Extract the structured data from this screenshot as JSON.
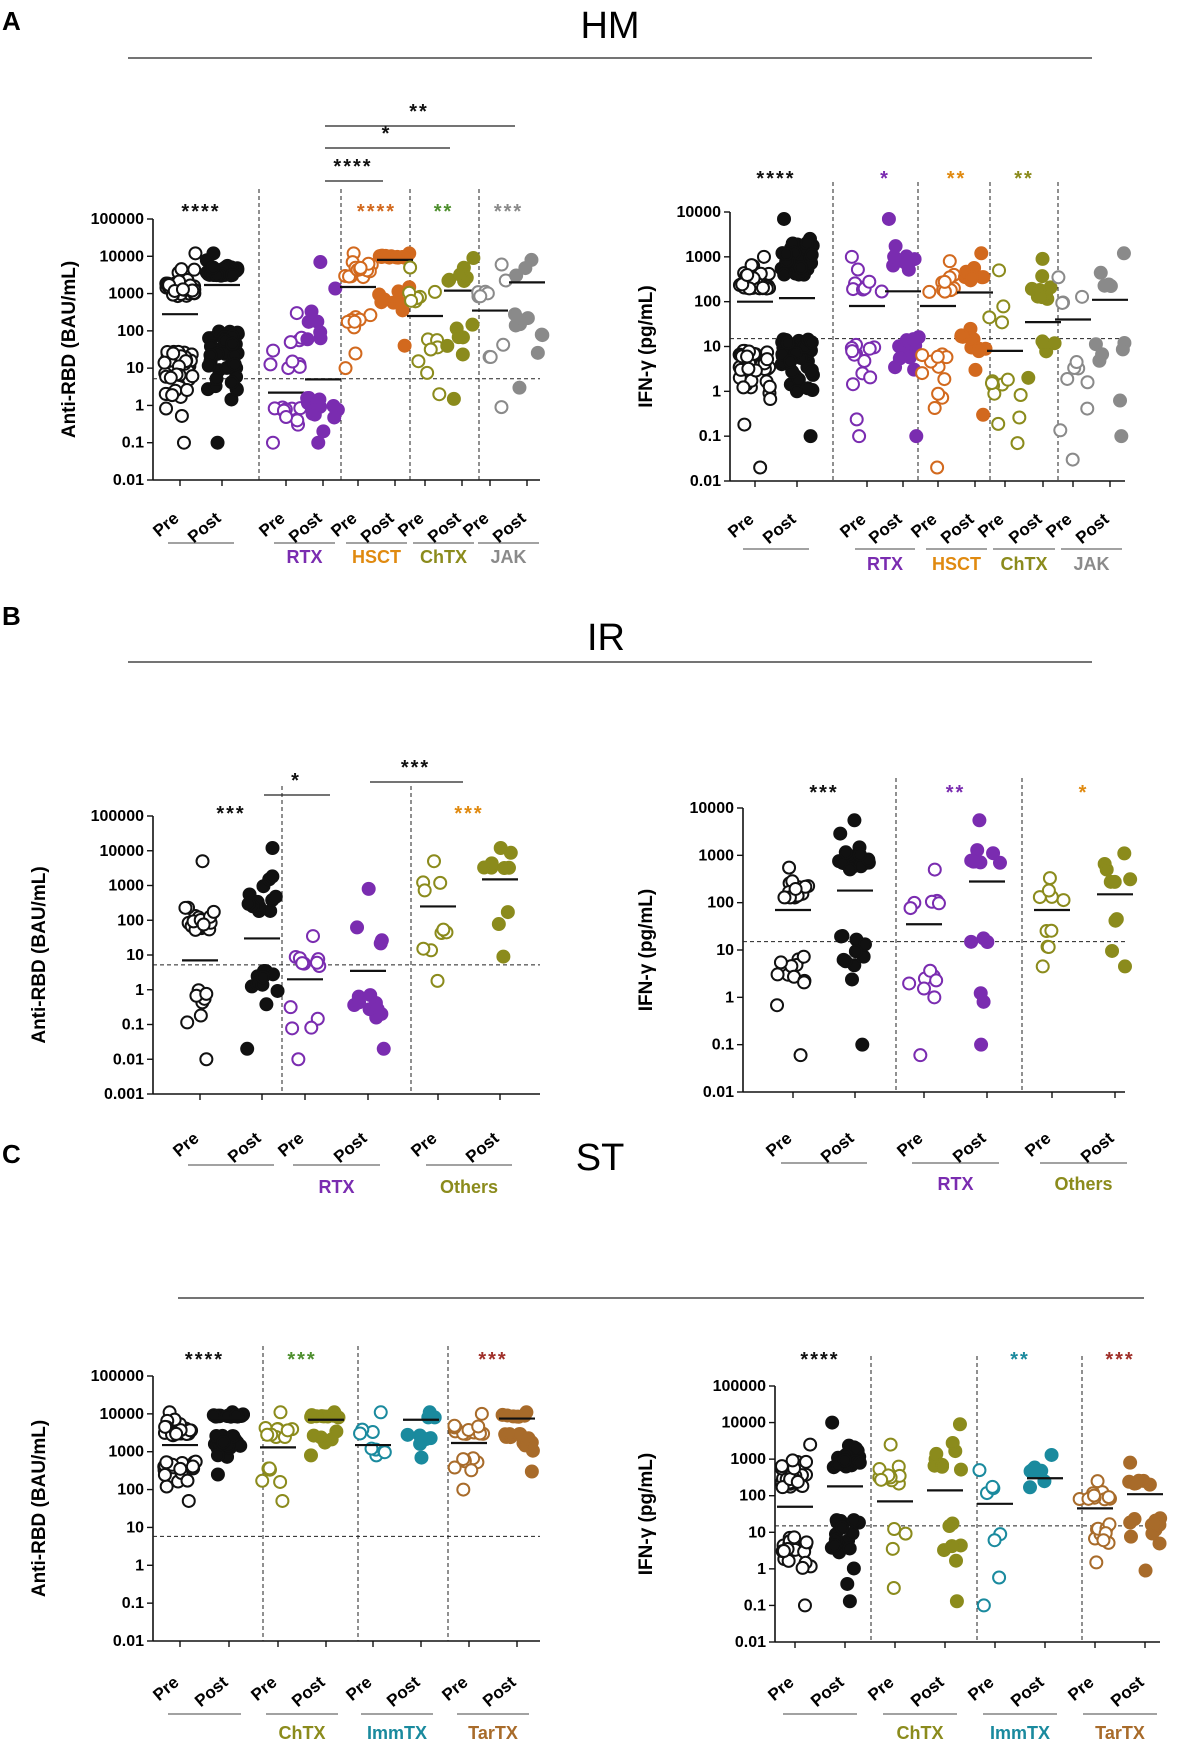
{
  "panels": [
    {
      "label": "A",
      "title": "HM"
    },
    {
      "label": "B",
      "title": "IR"
    },
    {
      "label": "C",
      "title": "ST"
    }
  ],
  "colors": {
    "black": "#111111",
    "rtx": "#7a2cb0",
    "hsct": "#d2691e",
    "hsct_label": "#e08a10",
    "chtx": "#8b8b1c",
    "chtx_sig": "#4e8f2e",
    "jak": "#8a8a8a",
    "others": "#8b8b1c",
    "immtx": "#1a8a9e",
    "tartx": "#a86b2a",
    "tartx_sig": "#a0302a"
  },
  "chart_data": [
    {
      "id": "A-left",
      "type": "scatter",
      "scale": "log",
      "ylabel": "Anti-RBD (BAU/mL)",
      "ytick_values": [
        0.01,
        0.1,
        1,
        10,
        100,
        1000,
        10000,
        100000
      ],
      "ytick_labels": [
        "0.01",
        "0.1",
        "1",
        "10",
        "100",
        "1000",
        "10000",
        "100000"
      ],
      "threshold": 5.2,
      "groups": [
        {
          "label": "",
          "categories": [
            {
              "name": "Pre",
              "color": "black",
              "filled": false,
              "n": 90,
              "min": 0.1,
              "max": 12000,
              "median": 280
            },
            {
              "name": "Post",
              "color": "black",
              "filled": true,
              "n": 90,
              "min": 0.1,
              "max": 12000,
              "median": 1700
            }
          ],
          "sig": "****",
          "sig_color": "black"
        },
        {
          "label": "RTX",
          "label_color": "rtx",
          "categories": [
            {
              "name": "Pre",
              "color": "rtx",
              "filled": false,
              "n": 22,
              "min": 0.1,
              "max": 300,
              "median": 2.2
            },
            {
              "name": "Post",
              "color": "rtx",
              "filled": true,
              "n": 22,
              "min": 0.1,
              "max": 7000,
              "median": 5
            }
          ]
        },
        {
          "label": "HSCT",
          "label_color": "hsct_label",
          "categories": [
            {
              "name": "Pre",
              "color": "hsct",
              "filled": false,
              "n": 24,
              "min": 10,
              "max": 12000,
              "median": 1500
            },
            {
              "name": "Post",
              "color": "hsct",
              "filled": true,
              "n": 24,
              "min": 40,
              "max": 12000,
              "median": 8000
            }
          ],
          "sig": "****",
          "sig_color": "hsct"
        },
        {
          "label": "ChTX",
          "label_color": "chtx",
          "categories": [
            {
              "name": "Pre",
              "color": "chtx",
              "filled": false,
              "n": 14,
              "min": 2,
              "max": 5000,
              "median": 250
            },
            {
              "name": "Post",
              "color": "chtx",
              "filled": true,
              "n": 14,
              "min": 1.5,
              "max": 9000,
              "median": 1200
            }
          ],
          "sig": "**",
          "sig_color": "chtx_sig"
        },
        {
          "label": "JAK",
          "label_color": "jak",
          "categories": [
            {
              "name": "Pre",
              "color": "jak",
              "filled": false,
              "n": 12,
              "min": 0.9,
              "max": 6000,
              "median": 350
            },
            {
              "name": "Post",
              "color": "jak",
              "filled": true,
              "n": 12,
              "min": 3,
              "max": 8000,
              "median": 2000
            }
          ],
          "sig": "***",
          "sig_color": "jak"
        }
      ],
      "brackets": [
        {
          "from": 1,
          "to": 2,
          "label": "****",
          "level": 0
        },
        {
          "from": 1,
          "to": 3,
          "label": "*",
          "level": 1
        },
        {
          "from": 1,
          "to": 4,
          "label": "**",
          "level": 2
        }
      ]
    },
    {
      "id": "A-right",
      "type": "scatter",
      "scale": "log",
      "ylabel": "IFN-γ (pg/mL)",
      "ytick_values": [
        0.01,
        0.1,
        1,
        10,
        100,
        1000,
        10000
      ],
      "ytick_labels": [
        "0.01",
        "0.1",
        "1",
        "10",
        "100",
        "1000",
        "10000"
      ],
      "threshold": 15,
      "groups": [
        {
          "label": "",
          "categories": [
            {
              "name": "Pre",
              "color": "black",
              "filled": false,
              "n": 80,
              "min": 0.02,
              "max": 1000,
              "median": 100
            },
            {
              "name": "Post",
              "color": "black",
              "filled": true,
              "n": 80,
              "min": 0.1,
              "max": 7000,
              "median": 120
            }
          ],
          "sig": "****",
          "sig_color": "black"
        },
        {
          "label": "RTX",
          "label_color": "rtx",
          "categories": [
            {
              "name": "Pre",
              "color": "rtx",
              "filled": false,
              "n": 22,
              "min": 0.1,
              "max": 1000,
              "median": 80
            },
            {
              "name": "Post",
              "color": "rtx",
              "filled": true,
              "n": 22,
              "min": 0.1,
              "max": 7000,
              "median": 170
            }
          ],
          "sig": "*",
          "sig_color": "rtx"
        },
        {
          "label": "HSCT",
          "label_color": "hsct_label",
          "categories": [
            {
              "name": "Pre",
              "color": "hsct",
              "filled": false,
              "n": 22,
              "min": 0.02,
              "max": 800,
              "median": 80
            },
            {
              "name": "Post",
              "color": "hsct",
              "filled": true,
              "n": 22,
              "min": 0.3,
              "max": 1200,
              "median": 160
            }
          ],
          "sig": "**",
          "sig_color": "hsct_label"
        },
        {
          "label": "ChTX",
          "label_color": "chtx",
          "categories": [
            {
              "name": "Pre",
              "color": "chtx",
              "filled": false,
              "n": 14,
              "min": 0.07,
              "max": 500,
              "median": 8
            },
            {
              "name": "Post",
              "color": "chtx",
              "filled": true,
              "n": 14,
              "min": 2,
              "max": 900,
              "median": 35
            }
          ],
          "sig": "**",
          "sig_color": "chtx"
        },
        {
          "label": "JAK",
          "label_color": "jak",
          "categories": [
            {
              "name": "Pre",
              "color": "jak",
              "filled": false,
              "n": 12,
              "min": 0.03,
              "max": 350,
              "median": 40
            },
            {
              "name": "Post",
              "color": "jak",
              "filled": true,
              "n": 12,
              "min": 0.1,
              "max": 1200,
              "median": 110
            }
          ]
        }
      ]
    },
    {
      "id": "B-left",
      "type": "scatter",
      "scale": "log",
      "ylabel": "Anti-RBD (BAU/mL)",
      "ytick_values": [
        0.001,
        0.01,
        0.1,
        1,
        10,
        100,
        1000,
        10000,
        100000
      ],
      "ytick_labels": [
        "0.001",
        "0.01",
        "0.1",
        "1",
        "10",
        "100",
        "1000",
        "10000",
        "100000"
      ],
      "threshold": 5.2,
      "groups": [
        {
          "label": "",
          "categories": [
            {
              "name": "Pre",
              "color": "black",
              "filled": false,
              "n": 26,
              "min": 0.01,
              "max": 5000,
              "median": 7
            },
            {
              "name": "Post",
              "color": "black",
              "filled": true,
              "n": 26,
              "min": 0.02,
              "max": 12000,
              "median": 30
            }
          ],
          "sig": "***",
          "sig_color": "black"
        },
        {
          "label": "RTX",
          "label_color": "rtx",
          "categories": [
            {
              "name": "Pre",
              "color": "rtx",
              "filled": false,
              "n": 14,
              "min": 0.01,
              "max": 35,
              "median": 2
            },
            {
              "name": "Post",
              "color": "rtx",
              "filled": true,
              "n": 14,
              "min": 0.02,
              "max": 800,
              "median": 3.5
            }
          ]
        },
        {
          "label": "Others",
          "label_color": "others",
          "categories": [
            {
              "name": "Pre",
              "color": "others",
              "filled": false,
              "n": 10,
              "min": 1.8,
              "max": 5000,
              "median": 250
            },
            {
              "name": "Post",
              "color": "others",
              "filled": true,
              "n": 10,
              "min": 9,
              "max": 12000,
              "median": 1500
            }
          ],
          "sig": "***",
          "sig_color": "hsct_label"
        }
      ],
      "brackets": [
        {
          "from": 0,
          "to": 1,
          "label": "*",
          "level": 0
        },
        {
          "from": 1,
          "to": 2,
          "label": "***",
          "level": 1
        }
      ]
    },
    {
      "id": "B-right",
      "type": "scatter",
      "scale": "log",
      "ylabel": "IFN-γ (pg/mL)",
      "ytick_values": [
        0.01,
        0.1,
        1,
        10,
        100,
        1000,
        10000
      ],
      "ytick_labels": [
        "0.01",
        "0.1",
        "1",
        "10",
        "100",
        "1000",
        "10000"
      ],
      "threshold": 15,
      "groups": [
        {
          "label": "",
          "categories": [
            {
              "name": "Pre",
              "color": "black",
              "filled": false,
              "n": 28,
              "min": 0.06,
              "max": 550,
              "median": 70
            },
            {
              "name": "Post",
              "color": "black",
              "filled": true,
              "n": 28,
              "min": 0.1,
              "max": 5500,
              "median": 180
            }
          ],
          "sig": "***",
          "sig_color": "black"
        },
        {
          "label": "RTX",
          "label_color": "rtx",
          "categories": [
            {
              "name": "Pre",
              "color": "rtx",
              "filled": false,
              "n": 14,
              "min": 0.06,
              "max": 500,
              "median": 35
            },
            {
              "name": "Post",
              "color": "rtx",
              "filled": true,
              "n": 14,
              "min": 0.1,
              "max": 5500,
              "median": 280
            }
          ],
          "sig": "**",
          "sig_color": "rtx"
        },
        {
          "label": "Others",
          "label_color": "others",
          "categories": [
            {
              "name": "Pre",
              "color": "others",
              "filled": false,
              "n": 10,
              "min": 4.5,
              "max": 330,
              "median": 70
            },
            {
              "name": "Post",
              "color": "others",
              "filled": true,
              "n": 10,
              "min": 4.5,
              "max": 1100,
              "median": 150
            }
          ],
          "sig": "*",
          "sig_color": "hsct_label"
        }
      ]
    },
    {
      "id": "C-left",
      "type": "scatter",
      "scale": "log",
      "ylabel": "Anti-RBD (BAU/mL)",
      "ytick_values": [
        0.01,
        0.1,
        1,
        10,
        100,
        1000,
        10000,
        100000
      ],
      "ytick_labels": [
        "0.01",
        "0.1",
        "1",
        "10",
        "100",
        "1000",
        "10000",
        "100000"
      ],
      "threshold": 5.8,
      "groups": [
        {
          "label": "",
          "categories": [
            {
              "name": "Pre",
              "color": "black",
              "filled": false,
              "n": 45,
              "min": 50,
              "max": 11000,
              "median": 1500
            },
            {
              "name": "Post",
              "color": "black",
              "filled": true,
              "n": 45,
              "min": 250,
              "max": 11000,
              "median": 7500
            }
          ],
          "sig": "****",
          "sig_color": "black"
        },
        {
          "label": "ChTX",
          "label_color": "chtx",
          "categories": [
            {
              "name": "Pre",
              "color": "chtx",
              "filled": false,
              "n": 16,
              "min": 50,
              "max": 11000,
              "median": 1300
            },
            {
              "name": "Post",
              "color": "chtx",
              "filled": true,
              "n": 16,
              "min": 800,
              "max": 11000,
              "median": 7000
            }
          ],
          "sig": "***",
          "sig_color": "chtx_sig"
        },
        {
          "label": "ImmTX",
          "label_color": "immtx",
          "categories": [
            {
              "name": "Pre",
              "color": "immtx",
              "filled": false,
              "n": 9,
              "min": 800,
              "max": 11000,
              "median": 1500
            },
            {
              "name": "Post",
              "color": "immtx",
              "filled": true,
              "n": 9,
              "min": 700,
              "max": 11000,
              "median": 7000
            }
          ]
        },
        {
          "label": "TarTX",
          "label_color": "tartx",
          "categories": [
            {
              "name": "Pre",
              "color": "tartx",
              "filled": false,
              "n": 20,
              "min": 100,
              "max": 10000,
              "median": 1700
            },
            {
              "name": "Post",
              "color": "tartx",
              "filled": true,
              "n": 20,
              "min": 300,
              "max": 11000,
              "median": 7500
            }
          ],
          "sig": "***",
          "sig_color": "tartx_sig"
        }
      ]
    },
    {
      "id": "C-right",
      "type": "scatter",
      "scale": "log",
      "ylabel": "IFN-γ (pg/mL)",
      "ytick_values": [
        0.01,
        0.1,
        1,
        10,
        100,
        1000,
        10000,
        100000
      ],
      "ytick_labels": [
        "0.01",
        "0.1",
        "1",
        "10",
        "100",
        "1000",
        "10000",
        "100000"
      ],
      "threshold": 15,
      "groups": [
        {
          "label": "",
          "categories": [
            {
              "name": "Pre",
              "color": "black",
              "filled": false,
              "n": 45,
              "min": 0.1,
              "max": 2500,
              "median": 50
            },
            {
              "name": "Post",
              "color": "black",
              "filled": true,
              "n": 45,
              "min": 0.13,
              "max": 10000,
              "median": 180
            }
          ],
          "sig": "****",
          "sig_color": "black"
        },
        {
          "label": "ChTX",
          "label_color": "chtx",
          "categories": [
            {
              "name": "Pre",
              "color": "chtx",
              "filled": false,
              "n": 16,
              "min": 0.3,
              "max": 2500,
              "median": 70
            },
            {
              "name": "Post",
              "color": "chtx",
              "filled": true,
              "n": 16,
              "min": 0.13,
              "max": 9000,
              "median": 140
            }
          ]
        },
        {
          "label": "ImmTX",
          "label_color": "immtx",
          "categories": [
            {
              "name": "Pre",
              "color": "immtx",
              "filled": false,
              "n": 8,
              "min": 0.1,
              "max": 500,
              "median": 60
            },
            {
              "name": "Post",
              "color": "immtx",
              "filled": true,
              "n": 8,
              "min": 170,
              "max": 1300,
              "median": 300
            }
          ],
          "sig": "**",
          "sig_color": "immtx"
        },
        {
          "label": "TarTX",
          "label_color": "tartx",
          "categories": [
            {
              "name": "Pre",
              "color": "tartx",
              "filled": false,
              "n": 20,
              "min": 1.5,
              "max": 250,
              "median": 45
            },
            {
              "name": "Post",
              "color": "tartx",
              "filled": true,
              "n": 20,
              "min": 0.9,
              "max": 800,
              "median": 110
            }
          ],
          "sig": "***",
          "sig_color": "tartx_sig"
        }
      ]
    }
  ]
}
